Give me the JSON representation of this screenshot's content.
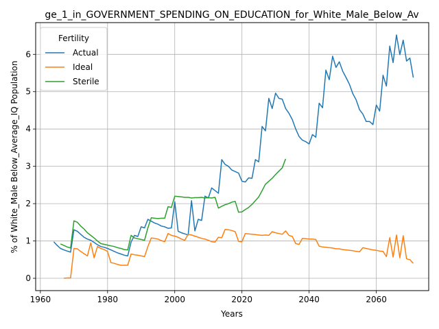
{
  "chart_data": {
    "type": "line",
    "title": "ge_1_in_GOVERNMENT_SPENDING_ON_EDUCATION_for_White_Male_Below_Av",
    "xlabel": "Years",
    "ylabel": "% of White_Male Below_Average_IQ Population",
    "xlim": [
      1958.6,
      2075.6
    ],
    "ylim": [
      -0.33,
      6.85
    ],
    "xticks": [
      1960,
      1980,
      2000,
      2020,
      2040,
      2060
    ],
    "yticks": [
      0,
      1,
      2,
      3,
      4,
      5,
      6
    ],
    "grid": true,
    "legend": {
      "title": "Fertility",
      "placement": "upper left"
    },
    "series": [
      {
        "name": "Actual",
        "color": "#1f77b4",
        "points": [
          [
            1964,
            0.98
          ],
          [
            1965,
            0.88
          ],
          [
            1966,
            0.8
          ],
          [
            1967,
            0.76
          ],
          [
            1968,
            0.73
          ],
          [
            1969,
            0.7
          ],
          [
            1970,
            1.3
          ],
          [
            1971,
            1.26
          ],
          [
            1972,
            1.18
          ],
          [
            1973,
            1.1
          ],
          [
            1974,
            1.05
          ],
          [
            1975,
            1.02
          ],
          [
            1976,
            0.96
          ],
          [
            1977,
            0.9
          ],
          [
            1978,
            0.85
          ],
          [
            1979,
            0.83
          ],
          [
            1980,
            0.8
          ],
          [
            1981,
            0.76
          ],
          [
            1982,
            0.72
          ],
          [
            1983,
            0.68
          ],
          [
            1984,
            0.65
          ],
          [
            1985,
            0.62
          ],
          [
            1986,
            0.6
          ],
          [
            1987,
            0.97
          ],
          [
            1988,
            1.15
          ],
          [
            1989,
            1.12
          ],
          [
            1990,
            1.38
          ],
          [
            1991,
            1.35
          ],
          [
            1992,
            1.58
          ],
          [
            1993,
            1.53
          ],
          [
            1994,
            1.48
          ],
          [
            1995,
            1.45
          ],
          [
            1996,
            1.4
          ],
          [
            1997,
            1.38
          ],
          [
            1998,
            1.34
          ],
          [
            1999,
            1.35
          ],
          [
            2000,
            2.05
          ],
          [
            2001,
            1.26
          ],
          [
            2002,
            1.22
          ],
          [
            2003,
            1.19
          ],
          [
            2004,
            1.16
          ],
          [
            2005,
            2.08
          ],
          [
            2006,
            1.27
          ],
          [
            2007,
            1.58
          ],
          [
            2008,
            1.55
          ],
          [
            2009,
            2.2
          ],
          [
            2010,
            2.15
          ],
          [
            2011,
            2.42
          ],
          [
            2012,
            2.35
          ],
          [
            2013,
            2.28
          ],
          [
            2014,
            3.18
          ],
          [
            2015,
            3.05
          ],
          [
            2016,
            3.0
          ],
          [
            2017,
            2.9
          ],
          [
            2018,
            2.86
          ],
          [
            2019,
            2.82
          ],
          [
            2020,
            2.6
          ],
          [
            2021,
            2.58
          ],
          [
            2022,
            2.69
          ],
          [
            2023,
            2.68
          ],
          [
            2024,
            3.18
          ],
          [
            2025,
            3.12
          ],
          [
            2026,
            4.07
          ],
          [
            2027,
            3.95
          ],
          [
            2028,
            4.82
          ],
          [
            2029,
            4.55
          ],
          [
            2030,
            4.96
          ],
          [
            2031,
            4.82
          ],
          [
            2032,
            4.8
          ],
          [
            2033,
            4.55
          ],
          [
            2034,
            4.42
          ],
          [
            2035,
            4.25
          ],
          [
            2036,
            4.0
          ],
          [
            2037,
            3.8
          ],
          [
            2038,
            3.7
          ],
          [
            2039,
            3.66
          ],
          [
            2040,
            3.6
          ],
          [
            2041,
            3.85
          ],
          [
            2042,
            3.78
          ],
          [
            2043,
            4.69
          ],
          [
            2044,
            4.57
          ],
          [
            2045,
            5.58
          ],
          [
            2046,
            5.32
          ],
          [
            2047,
            5.95
          ],
          [
            2048,
            5.65
          ],
          [
            2049,
            5.8
          ],
          [
            2050,
            5.55
          ],
          [
            2051,
            5.38
          ],
          [
            2052,
            5.2
          ],
          [
            2053,
            4.95
          ],
          [
            2054,
            4.78
          ],
          [
            2055,
            4.52
          ],
          [
            2056,
            4.4
          ],
          [
            2057,
            4.2
          ],
          [
            2058,
            4.2
          ],
          [
            2059,
            4.12
          ],
          [
            2060,
            4.64
          ],
          [
            2061,
            4.48
          ],
          [
            2062,
            5.44
          ],
          [
            2063,
            5.15
          ],
          [
            2064,
            6.22
          ],
          [
            2065,
            5.78
          ],
          [
            2066,
            6.52
          ],
          [
            2067,
            5.99
          ],
          [
            2068,
            6.38
          ],
          [
            2069,
            5.82
          ],
          [
            2070,
            5.9
          ],
          [
            2071,
            5.38
          ]
        ]
      },
      {
        "name": "Ideal",
        "color": "#ff7f0e",
        "points": [
          [
            1967,
            0.0
          ],
          [
            1968,
            0.01
          ],
          [
            1969,
            0.01
          ],
          [
            1970,
            0.8
          ],
          [
            1971,
            0.79
          ],
          [
            1972,
            0.72
          ],
          [
            1973,
            0.66
          ],
          [
            1974,
            0.6
          ],
          [
            1975,
            0.95
          ],
          [
            1976,
            0.55
          ],
          [
            1977,
            0.85
          ],
          [
            1978,
            0.8
          ],
          [
            1979,
            0.77
          ],
          [
            1980,
            0.72
          ],
          [
            1981,
            0.42
          ],
          [
            1982,
            0.4
          ],
          [
            1983,
            0.37
          ],
          [
            1984,
            0.35
          ],
          [
            1985,
            0.35
          ],
          [
            1986,
            0.35
          ],
          [
            1987,
            0.65
          ],
          [
            1988,
            0.63
          ],
          [
            1989,
            0.62
          ],
          [
            1990,
            0.6
          ],
          [
            1991,
            0.58
          ],
          [
            1992,
            0.85
          ],
          [
            1993,
            1.08
          ],
          [
            1994,
            1.07
          ],
          [
            1995,
            1.05
          ],
          [
            1996,
            1.01
          ],
          [
            1997,
            0.98
          ],
          [
            1998,
            1.2
          ],
          [
            1999,
            1.15
          ],
          [
            2000,
            1.13
          ],
          [
            2001,
            1.1
          ],
          [
            2002,
            1.05
          ],
          [
            2003,
            1.02
          ],
          [
            2004,
            1.18
          ],
          [
            2005,
            1.16
          ],
          [
            2006,
            1.13
          ],
          [
            2007,
            1.1
          ],
          [
            2008,
            1.07
          ],
          [
            2009,
            1.05
          ],
          [
            2010,
            1.02
          ],
          [
            2011,
            0.98
          ],
          [
            2012,
            0.97
          ],
          [
            2013,
            1.1
          ],
          [
            2014,
            1.09
          ],
          [
            2015,
            1.31
          ],
          [
            2016,
            1.3
          ],
          [
            2017,
            1.28
          ],
          [
            2018,
            1.25
          ],
          [
            2019,
            0.99
          ],
          [
            2020,
            0.98
          ],
          [
            2021,
            1.2
          ],
          [
            2022,
            1.19
          ],
          [
            2023,
            1.18
          ],
          [
            2024,
            1.17
          ],
          [
            2025,
            1.16
          ],
          [
            2026,
            1.15
          ],
          [
            2027,
            1.16
          ],
          [
            2028,
            1.15
          ],
          [
            2029,
            1.25
          ],
          [
            2030,
            1.22
          ],
          [
            2031,
            1.2
          ],
          [
            2032,
            1.18
          ],
          [
            2033,
            1.27
          ],
          [
            2034,
            1.15
          ],
          [
            2035,
            1.12
          ],
          [
            2036,
            0.93
          ],
          [
            2037,
            0.91
          ],
          [
            2038,
            1.07
          ],
          [
            2039,
            1.06
          ],
          [
            2040,
            1.05
          ],
          [
            2041,
            1.05
          ],
          [
            2042,
            1.04
          ],
          [
            2043,
            0.86
          ],
          [
            2044,
            0.84
          ],
          [
            2045,
            0.83
          ],
          [
            2046,
            0.82
          ],
          [
            2047,
            0.81
          ],
          [
            2048,
            0.79
          ],
          [
            2049,
            0.79
          ],
          [
            2050,
            0.77
          ],
          [
            2051,
            0.76
          ],
          [
            2052,
            0.75
          ],
          [
            2053,
            0.74
          ],
          [
            2054,
            0.72
          ],
          [
            2055,
            0.71
          ],
          [
            2056,
            0.82
          ],
          [
            2057,
            0.8
          ],
          [
            2058,
            0.78
          ],
          [
            2059,
            0.76
          ],
          [
            2060,
            0.75
          ],
          [
            2061,
            0.73
          ],
          [
            2062,
            0.72
          ],
          [
            2063,
            0.58
          ],
          [
            2064,
            1.09
          ],
          [
            2065,
            0.57
          ],
          [
            2066,
            1.16
          ],
          [
            2067,
            0.55
          ],
          [
            2068,
            1.14
          ],
          [
            2069,
            0.52
          ],
          [
            2070,
            0.5
          ],
          [
            2071,
            0.4
          ]
        ]
      },
      {
        "name": "Sterile",
        "color": "#2ca02c",
        "points": [
          [
            1966,
            0.92
          ],
          [
            1967,
            0.88
          ],
          [
            1968,
            0.84
          ],
          [
            1969,
            0.81
          ],
          [
            1970,
            1.54
          ],
          [
            1971,
            1.5
          ],
          [
            1972,
            1.4
          ],
          [
            1973,
            1.32
          ],
          [
            1974,
            1.22
          ],
          [
            1975,
            1.15
          ],
          [
            1976,
            1.08
          ],
          [
            1977,
            1.0
          ],
          [
            1978,
            0.93
          ],
          [
            1979,
            0.91
          ],
          [
            1980,
            0.89
          ],
          [
            1981,
            0.87
          ],
          [
            1982,
            0.85
          ],
          [
            1983,
            0.82
          ],
          [
            1984,
            0.8
          ],
          [
            1985,
            0.77
          ],
          [
            1986,
            0.76
          ],
          [
            1987,
            1.15
          ],
          [
            1988,
            1.08
          ],
          [
            1989,
            1.06
          ],
          [
            1990,
            1.04
          ],
          [
            1991,
            1.02
          ],
          [
            1992,
            1.35
          ],
          [
            1993,
            1.62
          ],
          [
            1994,
            1.61
          ],
          [
            1995,
            1.6
          ],
          [
            1996,
            1.61
          ],
          [
            1997,
            1.61
          ],
          [
            1998,
            1.92
          ],
          [
            1999,
            1.9
          ],
          [
            2000,
            2.2
          ],
          [
            2001,
            2.19
          ],
          [
            2002,
            2.18
          ],
          [
            2003,
            2.17
          ],
          [
            2004,
            2.17
          ],
          [
            2005,
            2.15
          ],
          [
            2006,
            2.16
          ],
          [
            2007,
            2.16
          ],
          [
            2008,
            2.17
          ],
          [
            2009,
            2.15
          ],
          [
            2010,
            2.16
          ],
          [
            2011,
            2.15
          ],
          [
            2012,
            2.17
          ],
          [
            2013,
            1.88
          ],
          [
            2014,
            1.93
          ],
          [
            2015,
            1.97
          ],
          [
            2016,
            2.0
          ],
          [
            2017,
            2.04
          ],
          [
            2018,
            2.06
          ],
          [
            2019,
            1.77
          ],
          [
            2020,
            1.78
          ],
          [
            2021,
            1.84
          ],
          [
            2022,
            1.9
          ],
          [
            2023,
            1.98
          ],
          [
            2024,
            2.08
          ],
          [
            2025,
            2.18
          ],
          [
            2026,
            2.35
          ],
          [
            2027,
            2.52
          ],
          [
            2028,
            2.6
          ],
          [
            2029,
            2.68
          ],
          [
            2030,
            2.78
          ],
          [
            2031,
            2.87
          ],
          [
            2032,
            2.96
          ],
          [
            2033,
            3.2
          ]
        ]
      }
    ]
  }
}
